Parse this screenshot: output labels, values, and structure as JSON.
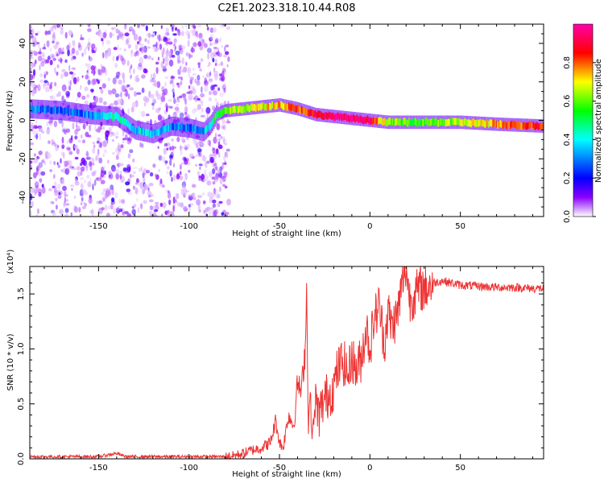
{
  "title": "C2E1.2023.318.10.44.R08",
  "colors": {
    "line": "#ee3333",
    "axis": "#000000",
    "background": "#ffffff"
  },
  "chart_data": [
    {
      "type": "heatmap",
      "name": "spectrogram",
      "xlabel": "Height of straight line (km)",
      "ylabel": "Frequency (Hz)",
      "xlim": [
        -188,
        96
      ],
      "ylim": [
        -50,
        50
      ],
      "xticks": [
        -150,
        -100,
        -50,
        0,
        50
      ],
      "yticks": [
        -40,
        -20,
        0,
        20,
        40
      ],
      "colorbar": {
        "label": "Normalized spectral amplitude",
        "range": [
          0,
          1
        ],
        "ticks": [
          "0.0",
          "0.2",
          "0.4",
          "0.6",
          "0.8"
        ],
        "colormap": [
          "#ffffff",
          "#8a00ff",
          "#0000ff",
          "#00ffff",
          "#00ff00",
          "#ffff00",
          "#ff0000",
          "#ff00aa"
        ]
      },
      "ridge": {
        "x": [
          -188,
          -170,
          -155,
          -140,
          -130,
          -120,
          -110,
          -100,
          -92,
          -88,
          -85,
          -80,
          -70,
          -60,
          -50,
          -40,
          -30,
          -20,
          -10,
          0,
          10,
          30,
          50,
          70,
          96
        ],
        "freq": [
          6,
          5,
          3,
          2,
          -5,
          -7,
          -3,
          -4,
          -6,
          -2,
          3,
          5,
          6,
          7,
          8,
          6,
          3,
          2,
          1,
          0,
          -1,
          -1,
          -1,
          -2,
          -3
        ],
        "amplitude": [
          0.3,
          0.25,
          0.3,
          0.45,
          0.35,
          0.4,
          0.3,
          0.3,
          0.35,
          0.45,
          0.55,
          0.6,
          0.65,
          0.7,
          0.75,
          0.8,
          0.85,
          0.95,
          0.95,
          0.9,
          0.6,
          0.6,
          0.65,
          0.75,
          0.85
        ]
      }
    },
    {
      "type": "line",
      "name": "snr",
      "xlabel": "Height of straight line (km)",
      "ylabel": "SNR (10 * v/v)",
      "scale_label": "(x10⁴)",
      "xlim": [
        -188,
        96
      ],
      "ylim": [
        0,
        1.75
      ],
      "xticks": [
        -150,
        -100,
        -50,
        0,
        50
      ],
      "yticks": [
        "0.0",
        "0.5",
        "1.0",
        "1.5"
      ],
      "series": [
        {
          "name": "SNR",
          "x": [
            -188,
            -170,
            -150,
            -140,
            -135,
            -120,
            -100,
            -90,
            -80,
            -75,
            -70,
            -65,
            -60,
            -55,
            -52,
            -50,
            -48,
            -45,
            -42,
            -40,
            -38,
            -36,
            -35,
            -34,
            -33,
            -32,
            -31,
            -30,
            -28,
            -25,
            -22,
            -20,
            -18,
            -15,
            -12,
            -10,
            -8,
            -5,
            -2,
            0,
            2,
            5,
            8,
            10,
            12,
            15,
            18,
            20,
            22,
            25,
            28,
            30,
            35,
            40,
            45,
            50,
            60,
            70,
            80,
            90,
            96
          ],
          "y": [
            0.02,
            0.02,
            0.02,
            0.05,
            0.02,
            0.02,
            0.02,
            0.02,
            0.02,
            0.03,
            0.05,
            0.08,
            0.1,
            0.15,
            0.35,
            0.15,
            0.1,
            0.4,
            0.3,
            0.7,
            0.6,
            0.95,
            1.5,
            0.3,
            0.6,
            0.2,
            0.35,
            0.5,
            0.4,
            0.55,
            0.6,
            0.65,
            0.8,
            0.9,
            0.75,
            0.95,
            0.8,
            0.9,
            1.2,
            1.0,
            1.25,
            1.4,
            1.05,
            1.35,
            1.2,
            1.3,
            1.6,
            1.75,
            1.45,
            1.5,
            1.55,
            1.55,
            1.6,
            1.62,
            1.6,
            1.58,
            1.57,
            1.56,
            1.56,
            1.55,
            1.55
          ]
        }
      ]
    }
  ]
}
